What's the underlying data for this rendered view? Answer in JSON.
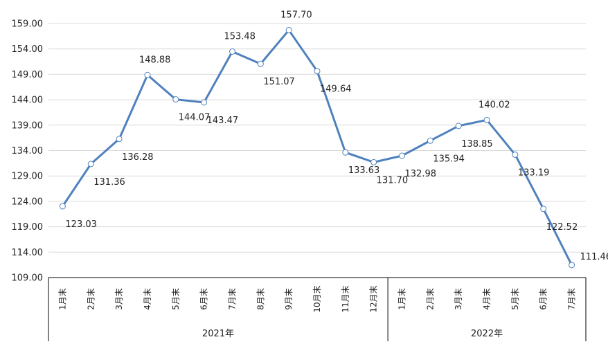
{
  "chart_data": {
    "type": "line",
    "title": "",
    "xlabel": "",
    "ylabel": "",
    "ylim": [
      109,
      159
    ],
    "y_ticks": [
      "109.00",
      "114.00",
      "119.00",
      "124.00",
      "129.00",
      "134.00",
      "139.00",
      "144.00",
      "149.00",
      "154.00",
      "159.00"
    ],
    "grid": true,
    "categories": [
      "1月末",
      "2月末",
      "3月末",
      "4月末",
      "5月末",
      "6月末",
      "7月末",
      "8月末",
      "9月末",
      "10月末",
      "11月末",
      "12月末",
      "1月末",
      "2月末",
      "3月末",
      "4月末",
      "5月末",
      "6月末",
      "7月末"
    ],
    "groups": [
      {
        "label": "2021年",
        "count": 12
      },
      {
        "label": "2022年",
        "count": 7
      }
    ],
    "series": [
      {
        "color": "#4f81bd",
        "values": [
          123.03,
          131.36,
          136.28,
          148.88,
          144.07,
          143.47,
          153.48,
          151.07,
          157.7,
          149.64,
          133.63,
          131.7,
          132.98,
          135.94,
          138.85,
          140.02,
          133.19,
          122.52,
          111.46
        ],
        "labels": [
          "123.03",
          "131.36",
          "136.28",
          "148.88",
          "144.07",
          "143.47",
          "153.48",
          "151.07",
          "157.70",
          "149.64",
          "133.63",
          "131.70",
          "132.98",
          "135.94",
          "138.85",
          "140.02",
          "133.19",
          "122.52",
          "111.46"
        ]
      }
    ]
  }
}
